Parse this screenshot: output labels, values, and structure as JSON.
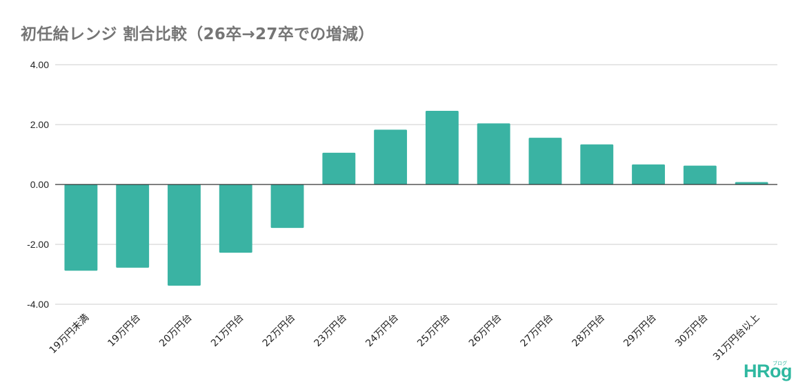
{
  "chart_data": {
    "type": "bar",
    "title": "初任給レンジ 割合比較（26卒→27卒での増減）",
    "categories": [
      "19万円未満",
      "19万円台",
      "20万円台",
      "21万円台",
      "22万円台",
      "23万円台",
      "24万円台",
      "25万円台",
      "26万円台",
      "27万円台",
      "28万円台",
      "29万円台",
      "30万円台",
      "31万円台以上"
    ],
    "values": [
      -2.88,
      -2.78,
      -3.38,
      -2.28,
      -1.45,
      1.06,
      1.83,
      2.46,
      2.04,
      1.56,
      1.34,
      0.67,
      0.63,
      0.08
    ],
    "yticks": [
      "4.00",
      "2.00",
      "0.00",
      "-2.00",
      "-4.00"
    ],
    "ylim": [
      -4,
      4
    ],
    "grid": true,
    "legend": "none",
    "bar_color": "#3ab3a3",
    "zero_line_color": "#333333",
    "grid_color": "#cccccc"
  },
  "logo": {
    "text": "HRog",
    "subtext": "ブログ",
    "color": "#2fb8a0"
  }
}
